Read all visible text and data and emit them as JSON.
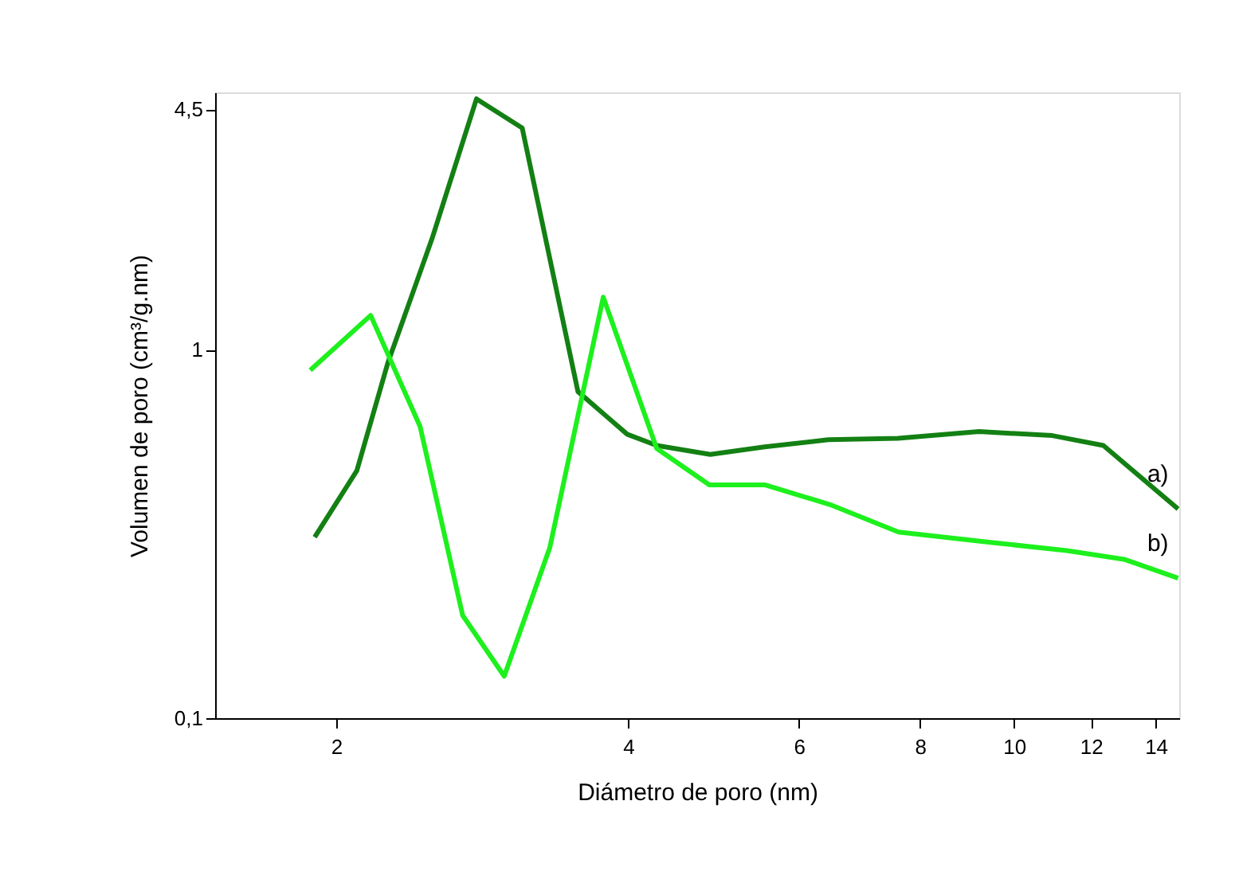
{
  "chart_data": {
    "type": "line",
    "xlabel": "Diámetro de poro (nm)",
    "ylabel": "Volumen de poro (cm³/g.nm)",
    "log": "xy",
    "grid": false,
    "legend": false,
    "line_style": "solid",
    "marker": "none",
    "xlim": [
      1.5,
      14.8
    ],
    "xticks": [
      2,
      4,
      6,
      8,
      10,
      12,
      14
    ],
    "ylim": [
      0.1,
      5
    ],
    "yticks": [
      {
        "value": 0.1,
        "label": "0,1"
      },
      1,
      {
        "value": 4.5,
        "label": "4,5"
      }
    ],
    "series": [
      {
        "name": "a)",
        "color": "#138013",
        "x": [
          1.9,
          2.1,
          2.26,
          2.51,
          2.79,
          3.11,
          3.55,
          3.99,
          4.28,
          4.86,
          5.53,
          6.43,
          7.59,
          9.2,
          10.95,
          12.36,
          14.76
        ],
        "values": [
          0.31,
          0.47,
          0.92,
          2.0,
          4.8,
          4.0,
          0.77,
          0.59,
          0.55,
          0.52,
          0.545,
          0.57,
          0.575,
          0.6,
          0.585,
          0.55,
          0.37
        ]
      },
      {
        "name": "b)",
        "color": "#1df01d",
        "x": [
          1.88,
          2.17,
          2.44,
          2.7,
          2.98,
          3.32,
          3.77,
          4.28,
          4.85,
          5.53,
          6.46,
          7.6,
          9.46,
          11.33,
          12.98,
          14.76
        ],
        "values": [
          0.88,
          1.24,
          0.62,
          0.19,
          0.13,
          0.29,
          1.39,
          0.54,
          0.43,
          0.43,
          0.38,
          0.32,
          0.3,
          0.285,
          0.27,
          0.24
        ]
      }
    ]
  }
}
